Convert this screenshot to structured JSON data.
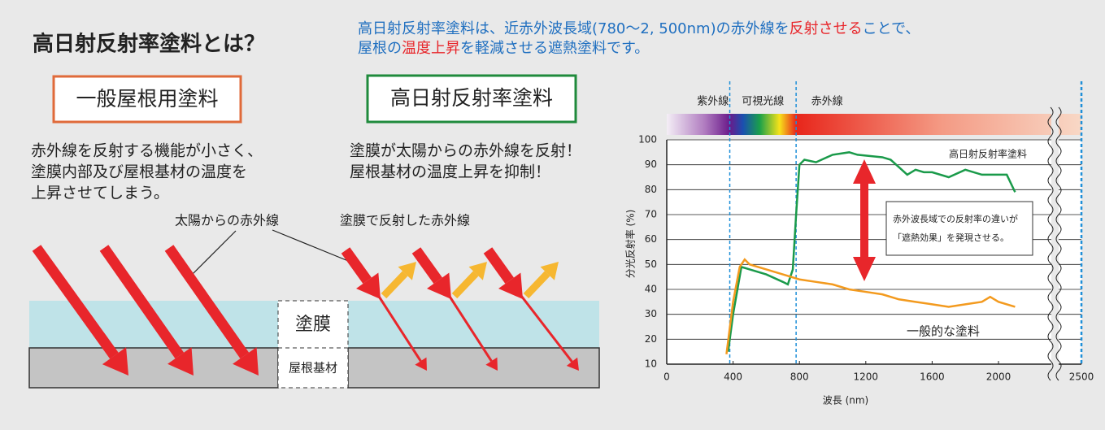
{
  "header": {
    "title": "高日射反射率塗料とは？",
    "description": [
      [
        {
          "text": "高日射反射率塗料は、近赤外波長域(780〜2, 500nm)の赤外線を",
          "color": "#1f6fc0"
        },
        {
          "text": "反射させる",
          "color": "#e8262b"
        },
        {
          "text": "ことで、",
          "color": "#1f6fc0"
        }
      ],
      [
        {
          "text": "屋根の",
          "color": "#1f6fc0"
        },
        {
          "text": "温度上昇",
          "color": "#e8262b"
        },
        {
          "text": "を軽減させる遮熱塗料です。",
          "color": "#1f6fc0"
        }
      ]
    ]
  },
  "panels": [
    {
      "title": "一般屋根用塗料",
      "color": "#e06a3a",
      "lines": [
        "赤外線を反射する機能が小さく、",
        "塗膜内部及び屋根基材の温度を",
        "上昇させてしまう。"
      ]
    },
    {
      "title": "高日射反射率塗料",
      "color": "#1f8a3c",
      "lines": [
        "塗膜が太陽からの赤外線を反射！",
        "屋根基材の温度上昇を抑制！"
      ]
    }
  ],
  "diagram": {
    "labels": [
      "太陽からの赤外線",
      "塗膜で反射した赤外線"
    ],
    "layers": [
      "塗膜",
      "屋根基材"
    ]
  },
  "chart_data": {
    "type": "line",
    "bands": [
      "紫外線",
      "可視光線",
      "赤外線"
    ],
    "band_edges": [
      380,
      780,
      2500
    ],
    "annotation": [
      "赤外波長域での反射率の違いが",
      "「遮熱効果」を発現させる。"
    ],
    "xlabel": "波長 (nm)",
    "ylabel": "分光反射率 (%)",
    "xlim": [
      0,
      2500
    ],
    "ylim": [
      10,
      100
    ],
    "xticks": [
      0,
      400,
      800,
      1200,
      1600,
      2000,
      2500
    ],
    "yticks": [
      10,
      20,
      30,
      40,
      50,
      60,
      70,
      80,
      90,
      100
    ],
    "grid": true,
    "series": [
      {
        "name": "高日射反射率塗料",
        "color": "#1a9a4a",
        "x": [
          370,
          400,
          450,
          500,
          600,
          700,
          730,
          760,
          780,
          800,
          830,
          900,
          1000,
          1100,
          1150,
          1300,
          1350,
          1400,
          1450,
          1500,
          1550,
          1600,
          1700,
          1800,
          1900,
          2000,
          2050,
          2100
        ],
        "values": [
          15,
          30,
          49,
          48,
          46,
          43,
          42,
          48,
          70,
          90,
          92,
          91,
          94,
          95,
          94,
          93,
          92,
          89,
          86,
          88,
          87,
          87,
          85,
          88,
          86,
          86,
          86,
          79
        ]
      },
      {
        "name": "一般的な塗料",
        "color": "#f39a1e",
        "x": [
          360,
          400,
          440,
          470,
          500,
          600,
          700,
          800,
          900,
          1000,
          1100,
          1200,
          1300,
          1400,
          1500,
          1600,
          1700,
          1800,
          1900,
          1950,
          2000,
          2100
        ],
        "values": [
          14,
          35,
          49,
          52,
          50,
          48,
          46,
          44,
          43,
          42,
          40,
          39,
          38,
          36,
          35,
          34,
          33,
          34,
          35,
          37,
          35,
          33
        ]
      }
    ]
  }
}
